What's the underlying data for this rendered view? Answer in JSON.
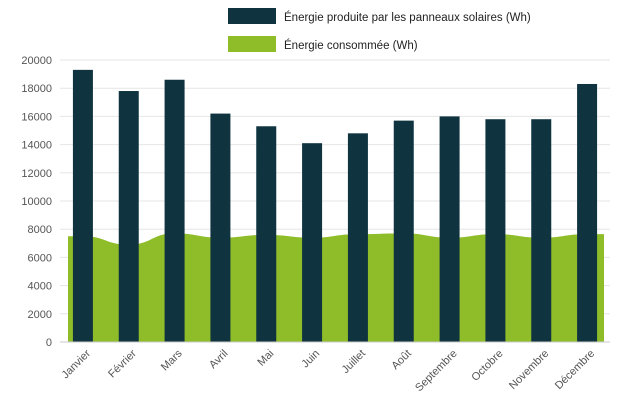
{
  "chart_data": {
    "type": "bar",
    "categories": [
      "Janvier",
      "Février",
      "Mars",
      "Avril",
      "Mai",
      "Juin",
      "Juillet",
      "Août",
      "Septembre",
      "Octobre",
      "Novembre",
      "Décembre"
    ],
    "series": [
      {
        "name": "Énergie produite par les panneaux solaires (Wh)",
        "type": "bar",
        "color": "#0f3440",
        "values": [
          19300,
          17800,
          18600,
          16200,
          15300,
          14100,
          14800,
          15700,
          16000,
          15800,
          15800,
          18300
        ]
      },
      {
        "name": "Énergie consommée (Wh)",
        "type": "area",
        "color": "#8fbd2a",
        "values": [
          7500,
          6900,
          7700,
          7400,
          7600,
          7400,
          7650,
          7700,
          7400,
          7650,
          7400,
          7650
        ]
      }
    ],
    "ylim": [
      0,
      20000
    ],
    "yticks": [
      "0",
      "2000",
      "4000",
      "6000",
      "8000",
      "10000",
      "12000",
      "14000",
      "16000",
      "18000",
      "20000"
    ],
    "grid": true,
    "legend_position": "top-right"
  }
}
